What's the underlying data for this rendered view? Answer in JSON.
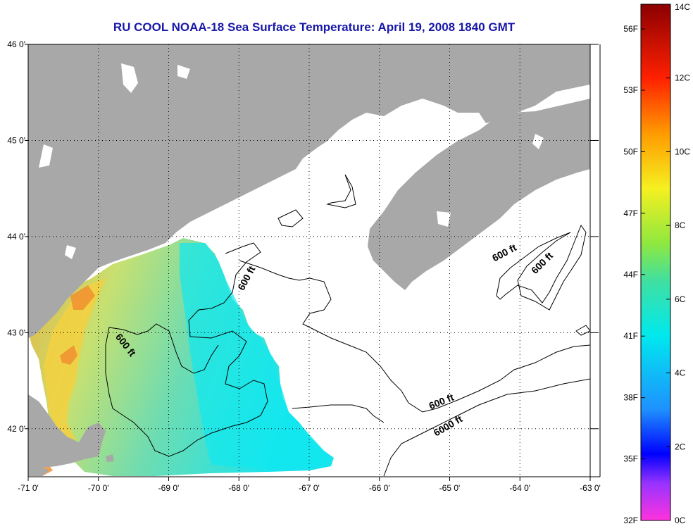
{
  "title": "RU COOL  NOAA-18  Sea Surface Temperature:  April 19, 2008 1840 GMT",
  "map": {
    "lat_range": [
      41.5,
      46.0
    ],
    "lon_range": [
      -71.0,
      -63.0
    ],
    "lat_ticks": [
      {
        "value": 46,
        "label": "46 0'"
      },
      {
        "value": 45,
        "label": "45 0'"
      },
      {
        "value": 44,
        "label": "44 0'"
      },
      {
        "value": 43,
        "label": "43 0'"
      },
      {
        "value": 42,
        "label": "42 0'"
      }
    ],
    "lon_ticks": [
      {
        "value": -71,
        "label": "-71 0'"
      },
      {
        "value": -70,
        "label": "-70 0'"
      },
      {
        "value": -69,
        "label": "-69 0'"
      },
      {
        "value": -68,
        "label": "-68 0'"
      },
      {
        "value": -67,
        "label": "-67 0'"
      },
      {
        "value": -66,
        "label": "-66 0'"
      },
      {
        "value": -65,
        "label": "-65 0'"
      },
      {
        "value": -64,
        "label": "-64 0'"
      },
      {
        "value": -63,
        "label": "-63 0'"
      }
    ],
    "grid": "dotted",
    "land_color": "#a8a8a8",
    "ocean_nodata_color": "#ffffff",
    "contour_labels": [
      {
        "text": "600 ft",
        "lon": -67.85,
        "lat": 43.55,
        "angle": -62
      },
      {
        "text": "600 ft",
        "lon": -69.65,
        "lat": 42.85,
        "angle": 52
      },
      {
        "text": "600 ft",
        "lon": -64.2,
        "lat": 43.8,
        "angle": -28
      },
      {
        "text": "600 ft",
        "lon": -63.65,
        "lat": 43.7,
        "angle": -45
      },
      {
        "text": "600 ft",
        "lon": -65.1,
        "lat": 42.25,
        "angle": -22
      },
      {
        "text": "6000 ft",
        "lon": -65.0,
        "lat": 42.0,
        "angle": -30
      }
    ]
  },
  "colorbar": {
    "min_c": 0,
    "max_c": 14,
    "celsius_ticks": [
      {
        "value": 14,
        "label": "14C"
      },
      {
        "value": 12,
        "label": "12C"
      },
      {
        "value": 10,
        "label": "10C"
      },
      {
        "value": 8,
        "label": "8C"
      },
      {
        "value": 6,
        "label": "6C"
      },
      {
        "value": 4,
        "label": "4C"
      },
      {
        "value": 2,
        "label": "2C"
      },
      {
        "value": 0,
        "label": "0C"
      }
    ],
    "fahrenheit_ticks": [
      {
        "value_c": 13.33,
        "label": "56F"
      },
      {
        "value_c": 11.67,
        "label": "53F"
      },
      {
        "value_c": 10.0,
        "label": "50F"
      },
      {
        "value_c": 8.33,
        "label": "47F"
      },
      {
        "value_c": 6.67,
        "label": "44F"
      },
      {
        "value_c": 5.0,
        "label": "41F"
      },
      {
        "value_c": 3.33,
        "label": "38F"
      },
      {
        "value_c": 1.67,
        "label": "35F"
      },
      {
        "value_c": 0,
        "label": "32F"
      }
    ],
    "stops": [
      {
        "c": 0,
        "color": "#ff33dd"
      },
      {
        "c": 1.0,
        "color": "#9933ff"
      },
      {
        "c": 1.8,
        "color": "#0000ff"
      },
      {
        "c": 3.0,
        "color": "#1e90ff"
      },
      {
        "c": 5.0,
        "color": "#00e8ee"
      },
      {
        "c": 6.5,
        "color": "#40e0a0"
      },
      {
        "c": 7.5,
        "color": "#8ee840"
      },
      {
        "c": 9.0,
        "color": "#f5f020"
      },
      {
        "c": 10.5,
        "color": "#ff9a00"
      },
      {
        "c": 12.0,
        "color": "#ff2000"
      },
      {
        "c": 14.0,
        "color": "#8b0000"
      }
    ]
  }
}
